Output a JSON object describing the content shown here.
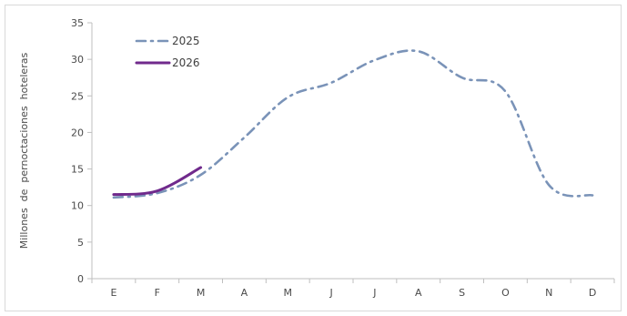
{
  "chart_data": {
    "type": "line",
    "title": "",
    "xlabel": "",
    "ylabel": "Millones  de  pernoctaciones  hoteleras",
    "categories": [
      "E",
      "F",
      "M",
      "A",
      "M",
      "J",
      "J",
      "A",
      "S",
      "O",
      "N",
      "D"
    ],
    "ylim": [
      0,
      35
    ],
    "yticks": [
      0,
      5,
      10,
      15,
      20,
      25,
      30,
      35
    ],
    "grid": false,
    "legend_position": "top-left",
    "series": [
      {
        "name": "2025",
        "color": "#7a93b8",
        "style": "dash-dot",
        "values": [
          11.1,
          11.7,
          14.2,
          19.3,
          24.8,
          26.8,
          29.9,
          31.1,
          27.5,
          25.6,
          12.8,
          11.4
        ]
      },
      {
        "name": "2026",
        "color": "#702a8c",
        "style": "solid",
        "values": [
          11.5,
          12.0,
          15.2,
          null,
          null,
          null,
          null,
          null,
          null,
          null,
          null,
          null
        ]
      }
    ]
  }
}
